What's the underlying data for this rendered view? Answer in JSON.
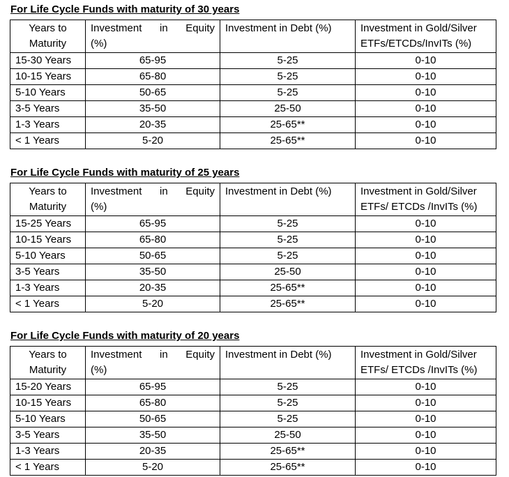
{
  "page": {
    "background": "#ffffff",
    "text_color": "#000000",
    "table_border_color": "#000000"
  },
  "sections": [
    {
      "title": "For Life Cycle Funds with maturity of 30 years",
      "table": {
        "headers": [
          [
            "Years to",
            "Maturity"
          ],
          [
            "Investment in Equity",
            "(%)"
          ],
          [
            "Investment in Debt (%)"
          ],
          [
            "Investment in Gold/Silver",
            "ETFs/ETCDs/InvITs (%)"
          ]
        ],
        "rows": [
          [
            "15-30 Years",
            "65-95",
            "5-25",
            "0-10"
          ],
          [
            "10-15 Years",
            "65-80",
            "5-25",
            "0-10"
          ],
          [
            "5-10 Years",
            "50-65",
            "5-25",
            "0-10"
          ],
          [
            "3-5 Years",
            "35-50",
            "25-50",
            "0-10"
          ],
          [
            "1-3 Years",
            "20-35",
            "25-65**",
            "0-10"
          ],
          [
            "< 1 Years",
            "5-20",
            "25-65**",
            "0-10"
          ]
        ]
      }
    },
    {
      "title": "For Life Cycle Funds with maturity of 25 years",
      "table": {
        "headers": [
          [
            "Years to",
            "Maturity"
          ],
          [
            "Investment in Equity",
            "(%)"
          ],
          [
            "Investment in Debt (%)"
          ],
          [
            "Investment in Gold/Silver",
            "ETFs/ ETCDs /InvITs (%)"
          ]
        ],
        "rows": [
          [
            "15-25 Years",
            "65-95",
            "5-25",
            "0-10"
          ],
          [
            "10-15 Years",
            "65-80",
            "5-25",
            "0-10"
          ],
          [
            "5-10 Years",
            "50-65",
            "5-25",
            "0-10"
          ],
          [
            "3-5 Years",
            "35-50",
            "25-50",
            "0-10"
          ],
          [
            "1-3 Years",
            "20-35",
            "25-65**",
            "0-10"
          ],
          [
            "< 1 Years",
            "5-20",
            "25-65**",
            "0-10"
          ]
        ]
      }
    },
    {
      "title": "For Life Cycle Funds with maturity of 20 years",
      "table": {
        "headers": [
          [
            "Years to",
            "Maturity"
          ],
          [
            "Investment in Equity",
            "(%)"
          ],
          [
            "Investment in Debt (%)"
          ],
          [
            "Investment in Gold/Silver",
            "ETFs/ ETCDs /InvITs (%)"
          ]
        ],
        "rows": [
          [
            "15-20 Years",
            "65-95",
            "5-25",
            "0-10"
          ],
          [
            "10-15 Years",
            "65-80",
            "5-25",
            "0-10"
          ],
          [
            "5-10 Years",
            "50-65",
            "5-25",
            "0-10"
          ],
          [
            "3-5 Years",
            "35-50",
            "25-50",
            "0-10"
          ],
          [
            "1-3 Years",
            "20-35",
            "25-65**",
            "0-10"
          ],
          [
            "< 1 Years",
            "5-20",
            "25-65**",
            "0-10"
          ]
        ]
      }
    }
  ]
}
